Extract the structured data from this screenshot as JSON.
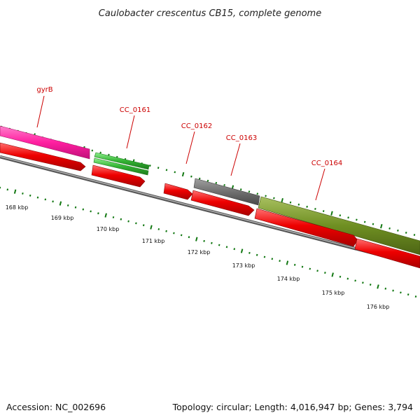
{
  "title": "Caulobacter crescentus CB15, complete genome",
  "footer": {
    "accession": "Accession: NC_002696",
    "summary": "Topology: circular; Length: 4,016,947 bp; Genes: 3,794"
  },
  "genes": [
    {
      "label": "gyrB",
      "color": "#ff1fa0"
    },
    {
      "label": "CC_0161",
      "color": "#33b333"
    },
    {
      "label": "CC_0162",
      "color": ""
    },
    {
      "label": "CC_0163",
      "color": "#707070"
    },
    {
      "label": "CC_0164",
      "color": "#6f8f22"
    }
  ],
  "kbp_ticks": [
    "168 kbp",
    "169 kbp",
    "170 kbp",
    "171 kbp",
    "172 kbp",
    "173 kbp",
    "174 kbp",
    "175 kbp",
    "176 kbp"
  ],
  "colors": {
    "cds": "#ee0000",
    "backbone": "#8a8a8a",
    "tick": "#117711",
    "label": "#cc0000"
  }
}
